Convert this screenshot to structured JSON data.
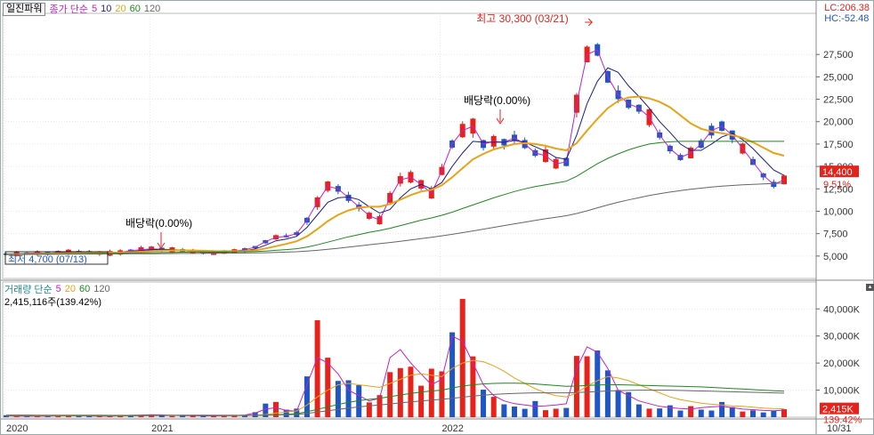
{
  "header": {
    "stock_name": "일진파워",
    "price_ma_label": "종가 단순",
    "price_ma_periods": [
      "5",
      "10",
      "20",
      "60",
      "120"
    ],
    "lc_label": "LC:206.38",
    "hc_label": "HC:-52.48"
  },
  "volume_header": {
    "label": "거래량 단순",
    "periods": [
      "5",
      "20",
      "60",
      "120"
    ],
    "current": "2,415,116주(139.42%)"
  },
  "annotations": {
    "high": "최고 30,300 (03/21)",
    "low": "최저 4,700 (07/13)",
    "dividend1": "배당락(0.00%)",
    "dividend2": "배당락(0.00%)"
  },
  "price_tags": {
    "last": "14,400",
    "change": "9.51%"
  },
  "volume_tags": {
    "last": "2,415K",
    "ratio": "139.42%"
  },
  "colors": {
    "up": "#e8221b",
    "down": "#1f56c4",
    "ma5": "#c81ec8",
    "ma10": "#1c1c8e",
    "ma20": "#e8a317",
    "ma60": "#1b8a1b",
    "ma120": "#666666"
  },
  "chart_data": [
    {
      "type": "candlestick",
      "ylabel": "",
      "ylim": [
        4700,
        30300
      ],
      "y_ticks": [
        "5,000",
        "7,500",
        "10,000",
        "12,500",
        "15,000",
        "17,500",
        "20,000",
        "22,500",
        "25,000",
        "27,500"
      ],
      "x_ticks": [
        "2020",
        "2021",
        "2022",
        "10/31"
      ],
      "series": [
        {
          "name": "5",
          "values": [
            5200,
            5250,
            5300,
            5350,
            5300,
            5400,
            5500,
            5450,
            5400,
            5350,
            5300,
            5400,
            5600,
            5700,
            5800,
            5750,
            5700,
            5600,
            5500,
            5400,
            5350,
            5450,
            5550,
            5700,
            6000,
            6600,
            7100,
            7200,
            7500,
            9000,
            11000,
            12800,
            12500,
            11500,
            10500,
            9500,
            9000,
            11500,
            13500,
            13800,
            13000,
            12000,
            14500,
            17500,
            19000,
            19500,
            17500,
            17800,
            17700,
            18200,
            17500,
            16500,
            16200,
            15300,
            15500,
            22000,
            27500,
            28000,
            25000,
            23000,
            22000,
            21500,
            20500,
            18500,
            17000,
            16000,
            16500,
            17500,
            19000,
            19500,
            18500,
            17000,
            15500,
            14000,
            13000,
            13500
          ]
        },
        {
          "name": "10",
          "values": [
            5200,
            5220,
            5250,
            5300,
            5310,
            5350,
            5420,
            5450,
            5440,
            5400,
            5350,
            5370,
            5480,
            5600,
            5700,
            5750,
            5720,
            5670,
            5600,
            5500,
            5420,
            5420,
            5480,
            5580,
            5800,
            6200,
            6700,
            6900,
            7200,
            8200,
            9600,
            11000,
            11500,
            11600,
            11300,
            10500,
            9800,
            10200,
            11500,
            12500,
            13000,
            12500,
            13200,
            15000,
            16500,
            17800,
            17700,
            17700,
            17700,
            17900,
            17700,
            17200,
            16700,
            16000,
            15800,
            18500,
            22000,
            24500,
            26000,
            25500,
            24000,
            22800,
            21500,
            20000,
            18800,
            17500,
            16800,
            16800,
            17500,
            18300,
            18700,
            18000,
            17000,
            15800,
            14600,
            14000
          ]
        },
        {
          "name": "20",
          "values": [
            5200,
            5210,
            5230,
            5250,
            5270,
            5290,
            5330,
            5360,
            5380,
            5390,
            5380,
            5380,
            5420,
            5480,
            5550,
            5600,
            5630,
            5640,
            5620,
            5590,
            5550,
            5540,
            5540,
            5560,
            5650,
            5850,
            6100,
            6350,
            6650,
            7200,
            8000,
            8900,
            9600,
            10100,
            10400,
            10500,
            10500,
            10800,
            11300,
            11800,
            12200,
            12400,
            12900,
            13800,
            14800,
            15800,
            16400,
            16900,
            17200,
            17500,
            17600,
            17500,
            17300,
            17000,
            16800,
            17600,
            19000,
            20300,
            21500,
            22300,
            22700,
            22800,
            22600,
            22200,
            21600,
            20700,
            19800,
            19200,
            18900,
            18700,
            18500,
            18200,
            17700,
            17100,
            16500,
            16200
          ]
        },
        {
          "name": "60",
          "values": [
            5200,
            5205,
            5210,
            5220,
            5230,
            5240,
            5250,
            5265,
            5280,
            5295,
            5310,
            5325,
            5340,
            5355,
            5370,
            5390,
            5410,
            5430,
            5440,
            5450,
            5455,
            5460,
            5465,
            5475,
            5500,
            5560,
            5640,
            5720,
            5820,
            6000,
            6250,
            6550,
            6850,
            7150,
            7400,
            7650,
            7850,
            8100,
            8400,
            8700,
            9000,
            9250,
            9550,
            9900,
            10300,
            10700,
            11100,
            11500,
            11850,
            12200,
            12500,
            12750,
            12950,
            13150,
            13350,
            13900,
            14600,
            15300,
            15900,
            16400,
            16850,
            17200,
            17500,
            17650,
            17750,
            17800,
            17800,
            17800,
            17800,
            17800,
            17800,
            17800,
            17800,
            17800,
            17800,
            17800
          ]
        },
        {
          "name": "120",
          "values": [
            5200,
            5202,
            5205,
            5208,
            5211,
            5214,
            5218,
            5222,
            5227,
            5232,
            5238,
            5244,
            5250,
            5257,
            5264,
            5272,
            5280,
            5288,
            5296,
            5304,
            5312,
            5320,
            5328,
            5338,
            5350,
            5375,
            5405,
            5440,
            5480,
            5550,
            5640,
            5750,
            5870,
            6000,
            6130,
            6260,
            6380,
            6510,
            6650,
            6800,
            6950,
            7100,
            7260,
            7430,
            7610,
            7800,
            8000,
            8200,
            8400,
            8600,
            8790,
            8980,
            9160,
            9330,
            9500,
            9750,
            10050,
            10380,
            10700,
            11000,
            11270,
            11520,
            11750,
            11960,
            12140,
            12300,
            12450,
            12580,
            12700,
            12800,
            12880,
            12950,
            13000,
            13050,
            13100,
            13150
          ]
        }
      ]
    },
    {
      "type": "bar",
      "ylabel": "",
      "ylim": [
        0,
        46000
      ],
      "y_ticks": [
        "10,000K",
        "20,000K",
        "30,000K",
        "40,000K"
      ],
      "x_ticks": [
        "2020",
        "2021",
        "2022",
        "10/31"
      ],
      "series": [
        {
          "name": "5",
          "values": [
            500,
            400,
            450,
            380,
            420,
            500,
            600,
            550,
            450,
            400,
            420,
            480,
            700,
            800,
            900,
            850,
            700,
            600,
            550,
            500,
            480,
            520,
            600,
            800,
            1500,
            3000,
            3500,
            2500,
            2200,
            12000,
            22000,
            20000,
            16000,
            10000,
            8000,
            6000,
            7000,
            22000,
            25000,
            20000,
            16000,
            12000,
            14000,
            30000,
            28000,
            20000,
            12000,
            8000,
            6000,
            5000,
            4500,
            4000,
            4200,
            4500,
            5000,
            18000,
            26000,
            24000,
            18000,
            10000,
            8000,
            6000,
            5000,
            4000,
            3500,
            3200,
            3000,
            3500,
            3800,
            4000,
            3500,
            3000,
            2800,
            2500,
            2400,
            2600
          ]
        },
        {
          "name": "20",
          "values": [
            600,
            580,
            560,
            540,
            520,
            510,
            520,
            530,
            540,
            520,
            500,
            490,
            520,
            560,
            620,
            680,
            720,
            740,
            730,
            700,
            660,
            620,
            590,
            600,
            700,
            1000,
            1500,
            1900,
            2300,
            4500,
            7500,
            10000,
            12000,
            12500,
            12000,
            11500,
            11000,
            12500,
            14000,
            15500,
            16000,
            15500,
            15000,
            18000,
            20000,
            21000,
            20500,
            19000,
            17000,
            14500,
            12500,
            10500,
            9000,
            8000,
            7500,
            9000,
            11500,
            13500,
            15000,
            14500,
            13500,
            12000,
            10500,
            9000,
            7500,
            6500,
            5800,
            5200,
            4800,
            4500,
            4200,
            4000,
            3700,
            3400,
            3200,
            3100
          ]
        },
        {
          "name": "60",
          "values": [
            700,
            690,
            680,
            670,
            660,
            650,
            640,
            630,
            620,
            610,
            600,
            590,
            600,
            610,
            620,
            640,
            660,
            680,
            690,
            700,
            700,
            690,
            680,
            670,
            700,
            800,
            950,
            1100,
            1300,
            2000,
            2900,
            3800,
            4700,
            5500,
            6100,
            6600,
            7000,
            7600,
            8200,
            8800,
            9300,
            9700,
            10000,
            10800,
            11500,
            12000,
            12300,
            12500,
            12600,
            12600,
            12500,
            12300,
            12000,
            11700,
            11400,
            11500,
            11700,
            11900,
            12000,
            12000,
            11900,
            11800,
            11700,
            11600,
            11500,
            11400,
            11300,
            11200,
            11000,
            10800,
            10600,
            10400,
            10200,
            10000,
            9800,
            9600
          ]
        },
        {
          "name": "120",
          "values": [
            800,
            790,
            780,
            770,
            760,
            750,
            740,
            730,
            720,
            710,
            700,
            690,
            690,
            690,
            690,
            690,
            690,
            690,
            690,
            690,
            690,
            690,
            690,
            690,
            700,
            750,
            820,
            900,
            1000,
            1400,
            1900,
            2400,
            2900,
            3400,
            3800,
            4200,
            4500,
            4900,
            5300,
            5700,
            6000,
            6300,
            6600,
            7000,
            7400,
            7800,
            8100,
            8400,
            8600,
            8800,
            8900,
            9000,
            9000,
            9000,
            9000,
            9100,
            9300,
            9500,
            9700,
            9800,
            9900,
            10000,
            10000,
            10000,
            10000,
            9900,
            9800,
            9700,
            9600,
            9500,
            9400,
            9300,
            9200,
            9100,
            9000,
            8900
          ]
        }
      ]
    }
  ]
}
